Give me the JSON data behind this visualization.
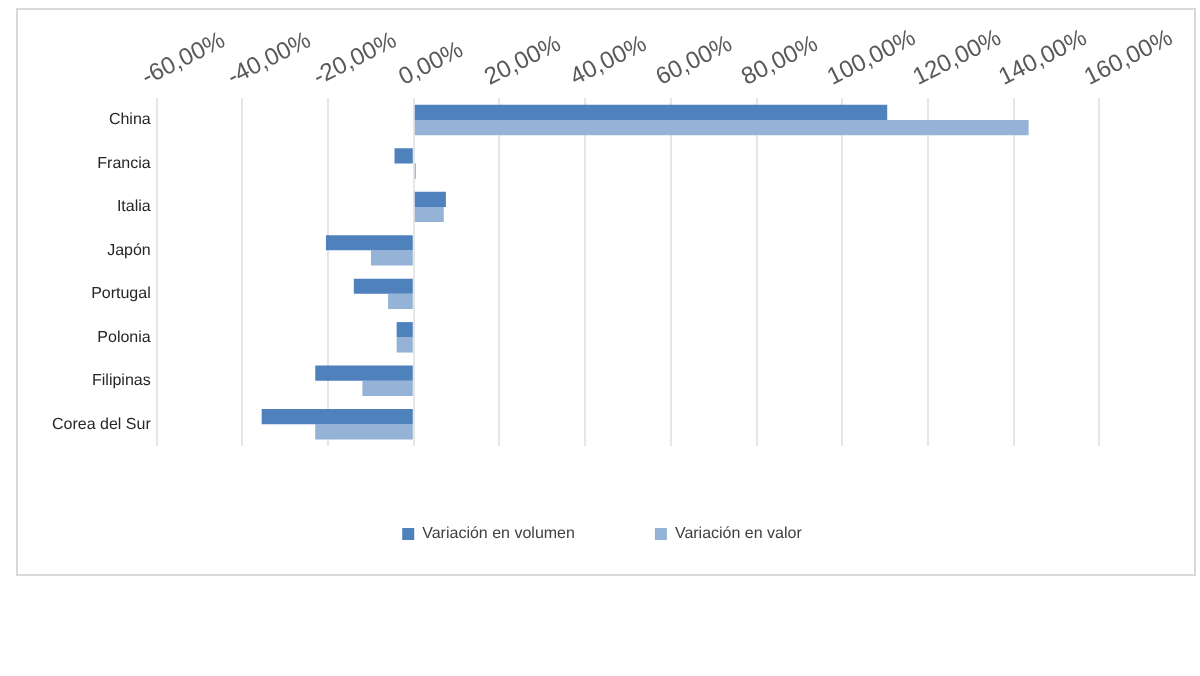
{
  "chart_data": {
    "type": "bar",
    "orientation": "horizontal",
    "categories": [
      "China",
      "Francia",
      "Italia",
      "Japón",
      "Portugal",
      "Polonia",
      "Filipinas",
      "Corea del Sur"
    ],
    "series": [
      {
        "name": "Variación en volumen",
        "color": "#4f81bd",
        "values": [
          110.5,
          -4.5,
          7.5,
          -20.5,
          -14,
          -4,
          -23,
          -35.5
        ]
      },
      {
        "name": "Variación en valor",
        "color": "#95b3d7",
        "values": [
          143.5,
          0.5,
          7,
          -10,
          -6,
          -4,
          -12,
          -23
        ]
      }
    ],
    "xlim": [
      -60,
      160
    ],
    "xticks": [
      {
        "value": -60,
        "label": "-60,00%"
      },
      {
        "value": -40,
        "label": "-40,00%"
      },
      {
        "value": -20,
        "label": "-20,00%"
      },
      {
        "value": 0,
        "label": "0,00%"
      },
      {
        "value": 20,
        "label": "20,00%"
      },
      {
        "value": 40,
        "label": "40,00%"
      },
      {
        "value": 60,
        "label": "60,00%"
      },
      {
        "value": 80,
        "label": "80,00%"
      },
      {
        "value": 100,
        "label": "100,00%"
      },
      {
        "value": 120,
        "label": "120,00%"
      },
      {
        "value": 140,
        "label": "140,00%"
      },
      {
        "value": 160,
        "label": "160,00%"
      }
    ],
    "grid": "x",
    "legend": "bottom"
  }
}
